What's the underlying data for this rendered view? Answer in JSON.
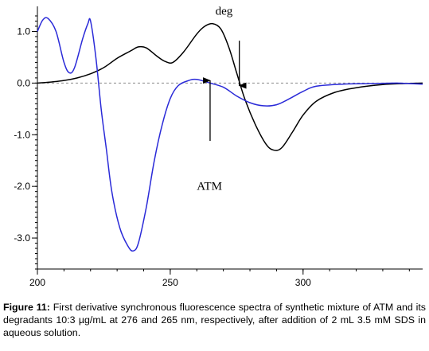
{
  "chart_data": {
    "type": "line",
    "x_ticks": [
      200,
      250,
      300
    ],
    "y_ticks": [
      1.0,
      0.0,
      -1.0,
      -2.0,
      -3.0
    ],
    "y_tick_labels": [
      "1.0",
      "0.0",
      "-1.0",
      "-2.0",
      "-3.0"
    ],
    "xlim": [
      200,
      345
    ],
    "ylim": [
      -3.6,
      1.3
    ],
    "zero_line": "dashed",
    "grid": false,
    "series": [
      {
        "name": "deg",
        "color": "#000000",
        "points": [
          [
            200,
            0.0
          ],
          [
            205,
            0.02
          ],
          [
            210,
            0.05
          ],
          [
            215,
            0.1
          ],
          [
            220,
            0.18
          ],
          [
            225,
            0.3
          ],
          [
            230,
            0.48
          ],
          [
            235,
            0.62
          ],
          [
            238,
            0.7
          ],
          [
            241,
            0.68
          ],
          [
            245,
            0.52
          ],
          [
            248,
            0.42
          ],
          [
            251,
            0.4
          ],
          [
            255,
            0.6
          ],
          [
            260,
            0.95
          ],
          [
            263,
            1.1
          ],
          [
            266,
            1.15
          ],
          [
            269,
            1.05
          ],
          [
            272,
            0.7
          ],
          [
            275,
            0.2
          ],
          [
            278,
            -0.3
          ],
          [
            282,
            -0.8
          ],
          [
            286,
            -1.18
          ],
          [
            289,
            -1.3
          ],
          [
            292,
            -1.25
          ],
          [
            296,
            -0.95
          ],
          [
            300,
            -0.62
          ],
          [
            305,
            -0.35
          ],
          [
            312,
            -0.18
          ],
          [
            320,
            -0.09
          ],
          [
            330,
            -0.03
          ],
          [
            338,
            -0.01
          ],
          [
            345,
            0.0
          ]
        ]
      },
      {
        "name": "ATM",
        "color": "#2a2ad8",
        "points": [
          [
            200,
            1.0
          ],
          [
            202,
            1.22
          ],
          [
            204,
            1.25
          ],
          [
            207,
            1.0
          ],
          [
            210,
            0.4
          ],
          [
            212,
            0.2
          ],
          [
            214,
            0.3
          ],
          [
            217,
            0.85
          ],
          [
            219,
            1.15
          ],
          [
            220,
            1.2
          ],
          [
            222,
            0.5
          ],
          [
            224,
            -0.5
          ],
          [
            226,
            -1.3
          ],
          [
            228,
            -2.1
          ],
          [
            231,
            -2.8
          ],
          [
            234,
            -3.15
          ],
          [
            236,
            -3.25
          ],
          [
            238,
            -3.1
          ],
          [
            241,
            -2.4
          ],
          [
            244,
            -1.5
          ],
          [
            247,
            -0.8
          ],
          [
            250,
            -0.3
          ],
          [
            253,
            -0.05
          ],
          [
            257,
            0.05
          ],
          [
            260,
            0.07
          ],
          [
            265,
            0.0
          ],
          [
            270,
            -0.08
          ],
          [
            275,
            -0.25
          ],
          [
            280,
            -0.38
          ],
          [
            285,
            -0.44
          ],
          [
            290,
            -0.42
          ],
          [
            295,
            -0.3
          ],
          [
            300,
            -0.16
          ],
          [
            305,
            -0.06
          ],
          [
            315,
            -0.02
          ],
          [
            325,
            -0.01
          ],
          [
            335,
            0.0
          ],
          [
            340,
            -0.01
          ],
          [
            345,
            -0.02
          ]
        ]
      }
    ],
    "annotations": [
      {
        "text": "deg",
        "x": 267,
        "y": 1.32
      },
      {
        "text": "ATM",
        "x": 260,
        "y": -2.07
      }
    ],
    "arrows": [
      {
        "direction": "down",
        "x": 276,
        "y_from": 0.82,
        "y_to": -0.05
      },
      {
        "direction": "up",
        "x": 265,
        "y_from": -1.12,
        "y_to": 0.05
      }
    ]
  },
  "caption": {
    "label": "Figure 11:",
    "text": " First derivative synchronous fluorescence spectra of synthetic mixture of ATM and its degradants 10:3 µg/mL at 276 and 265 nm, respectively, after addition of 2 mL 3.5 mM SDS in aqueous solution."
  }
}
